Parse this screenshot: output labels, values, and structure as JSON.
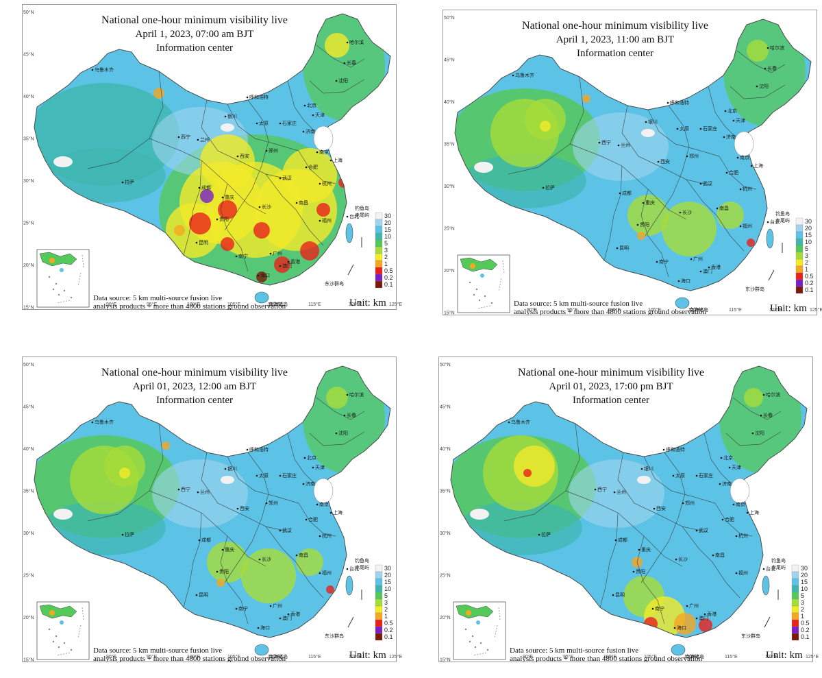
{
  "panels": [
    {
      "title": "National one-hour minimum visibility live",
      "time": "April 1, 2023, 07:00 am    BJT",
      "org": "Information center",
      "source_line1": "Data source: 5 km multi-source fusion live",
      "source_line2": "analysis products + more than 4800 stations ground observation",
      "unit": "Unit: km",
      "condition": "reduced-visibility-widespread"
    },
    {
      "title": "National one-hour minimum visibility live",
      "time": "April 1, 2023, 11:00 am    BJT",
      "org": "Information center",
      "source_line1": "Data source: 5 km multi-source fusion live",
      "source_line2": "analysis products + more than 4800 stations ground observation",
      "unit": "Unit: km",
      "condition": "mostly-good"
    },
    {
      "title": "National one-hour minimum visibility live",
      "time": "April 01, 2023, 12:00 am    BJT",
      "org": "Information center",
      "source_line1": "Data source: 5 km multi-source fusion live",
      "source_line2": "analysis products + more than 4800 stations ground observation",
      "unit": "Unit: km",
      "condition": "mostly-good"
    },
    {
      "title": "National one-hour minimum visibility live",
      "time": "April 01, 2023, 17:00 pm    BJT",
      "org": "Information center",
      "source_line1": "Data source: 5 km multi-source fusion live",
      "source_line2": "analysis products + more than 4800 stations ground observation",
      "unit": "Unit: km",
      "condition": "good-with-south-haze"
    }
  ],
  "legend": {
    "labels": [
      "30",
      "20",
      "15",
      "10",
      "5",
      "3",
      "2",
      "1",
      "0.5",
      "0.2",
      "0.1"
    ],
    "colors": [
      "#f2f2f2",
      "#9fd3ee",
      "#5dc3e6",
      "#3fb7b0",
      "#55c85a",
      "#a6dc3a",
      "#f2ea2a",
      "#f5a623",
      "#e8221b",
      "#7a1fc4",
      "#7a1a0c"
    ]
  },
  "lat_labels": [
    "50°N",
    "45°N",
    "40°N",
    "35°N",
    "30°N",
    "25°N",
    "20°N",
    "15°N"
  ],
  "lon_labels": [
    "85°E",
    "90°E",
    "95°E",
    "100°E",
    "105°E",
    "110°E",
    "115°E",
    "120°E",
    "125°E"
  ],
  "cities": [
    "哈尔滨",
    "长春",
    "沈阳",
    "乌鲁木齐",
    "呼和浩特",
    "北京",
    "天津",
    "太原",
    "石家庄",
    "济南",
    "银川",
    "西宁",
    "兰州",
    "西安",
    "郑州",
    "南京",
    "合肥",
    "上海",
    "武汉",
    "杭州",
    "成都",
    "重庆",
    "长沙",
    "南昌",
    "福州",
    "贵阳",
    "昆明",
    "南宁",
    "广州",
    "台北",
    "海口",
    "拉萨",
    "香港",
    "澳门"
  ],
  "island_labels": [
    "钓鱼岛",
    "赤尾屿",
    "东沙群岛",
    "南海诸岛"
  ]
}
